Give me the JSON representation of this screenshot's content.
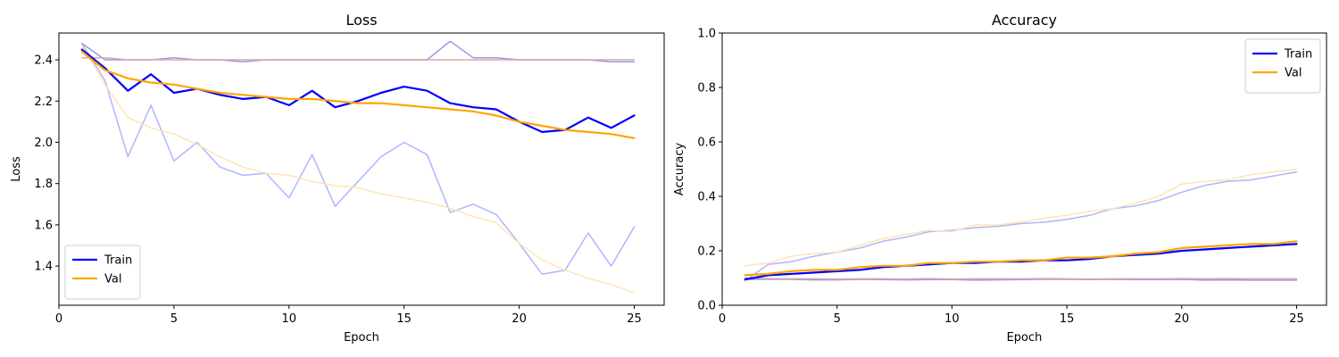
{
  "colors": {
    "train": "#0000ff",
    "val": "#ffa500",
    "train_faint": "#b3b3ff",
    "val_faint": "#ffe4b3",
    "train_mid": "#9898e8",
    "val_mid": "#d8a8a8"
  },
  "chart_data": [
    {
      "type": "line",
      "title": "Loss",
      "xlabel": "Epoch",
      "ylabel": "Loss",
      "xlim": [
        0,
        26.3
      ],
      "ylim": [
        1.21,
        2.53
      ],
      "xticks": [
        0,
        5,
        10,
        15,
        20,
        25
      ],
      "yticks": [
        1.4,
        1.6,
        1.8,
        2.0,
        2.2,
        2.4
      ],
      "ytick_decimals": 1,
      "legend": "lower-left",
      "grid": false,
      "x": [
        1,
        2,
        3,
        4,
        5,
        6,
        7,
        8,
        9,
        10,
        11,
        12,
        13,
        14,
        15,
        16,
        17,
        18,
        19,
        20,
        21,
        22,
        23,
        24,
        25
      ],
      "series": [
        {
          "name": "Train",
          "role": "train",
          "legend": true,
          "values": [
            2.45,
            2.36,
            2.25,
            2.33,
            2.24,
            2.26,
            2.23,
            2.21,
            2.22,
            2.18,
            2.25,
            2.17,
            2.2,
            2.24,
            2.27,
            2.25,
            2.19,
            2.17,
            2.16,
            2.1,
            2.05,
            2.06,
            2.12,
            2.07,
            2.13
          ]
        },
        {
          "name": "Val",
          "role": "val",
          "legend": true,
          "values": [
            2.44,
            2.35,
            2.31,
            2.29,
            2.28,
            2.26,
            2.24,
            2.23,
            2.22,
            2.21,
            2.21,
            2.2,
            2.19,
            2.19,
            2.18,
            2.17,
            2.16,
            2.15,
            2.13,
            2.1,
            2.08,
            2.06,
            2.05,
            2.04,
            2.02
          ]
        },
        {
          "role": "train_faint",
          "values": [
            2.48,
            2.3,
            1.93,
            2.18,
            1.91,
            2.0,
            1.88,
            1.84,
            1.85,
            1.73,
            1.94,
            1.69,
            1.81,
            1.93,
            2.0,
            1.94,
            1.66,
            1.7,
            1.65,
            1.51,
            1.36,
            1.38,
            1.56,
            1.4,
            1.59
          ]
        },
        {
          "role": "val_faint",
          "values": [
            2.47,
            2.28,
            2.12,
            2.07,
            2.04,
            1.99,
            1.93,
            1.88,
            1.85,
            1.84,
            1.81,
            1.79,
            1.78,
            1.75,
            1.73,
            1.71,
            1.68,
            1.64,
            1.61,
            1.51,
            1.43,
            1.38,
            1.34,
            1.31,
            1.27
          ]
        },
        {
          "role": "train_mid",
          "values": [
            2.48,
            2.4,
            2.4,
            2.4,
            2.41,
            2.4,
            2.4,
            2.39,
            2.4,
            2.4,
            2.4,
            2.4,
            2.4,
            2.4,
            2.4,
            2.4,
            2.49,
            2.41,
            2.41,
            2.4,
            2.4,
            2.4,
            2.4,
            2.39,
            2.39
          ]
        },
        {
          "role": "val_mid",
          "values": [
            2.41,
            2.41,
            2.4,
            2.4,
            2.4,
            2.4,
            2.4,
            2.4,
            2.4,
            2.4,
            2.4,
            2.4,
            2.4,
            2.4,
            2.4,
            2.4,
            2.4,
            2.4,
            2.4,
            2.4,
            2.4,
            2.4,
            2.4,
            2.4,
            2.4
          ]
        }
      ]
    },
    {
      "type": "line",
      "title": "Accuracy",
      "xlabel": "Epoch",
      "ylabel": "Accuracy",
      "xlim": [
        0,
        26.3
      ],
      "ylim": [
        0,
        1.0
      ],
      "xticks": [
        0,
        5,
        10,
        15,
        20,
        25
      ],
      "yticks": [
        0.0,
        0.2,
        0.4,
        0.6,
        0.8,
        1.0
      ],
      "ytick_decimals": 1,
      "legend": "top-right",
      "grid": false,
      "x": [
        1,
        2,
        3,
        4,
        5,
        6,
        7,
        8,
        9,
        10,
        11,
        12,
        13,
        14,
        15,
        16,
        17,
        18,
        19,
        20,
        21,
        22,
        23,
        24,
        25
      ],
      "series": [
        {
          "name": "Train",
          "role": "train",
          "legend": true,
          "values": [
            0.095,
            0.11,
            0.115,
            0.12,
            0.125,
            0.13,
            0.14,
            0.145,
            0.15,
            0.155,
            0.155,
            0.16,
            0.16,
            0.165,
            0.165,
            0.17,
            0.18,
            0.185,
            0.19,
            0.2,
            0.205,
            0.21,
            0.215,
            0.22,
            0.225
          ]
        },
        {
          "name": "Val",
          "role": "val",
          "legend": true,
          "values": [
            0.11,
            0.115,
            0.125,
            0.13,
            0.13,
            0.14,
            0.145,
            0.145,
            0.155,
            0.155,
            0.16,
            0.16,
            0.165,
            0.165,
            0.175,
            0.175,
            0.18,
            0.19,
            0.195,
            0.21,
            0.215,
            0.22,
            0.225,
            0.225,
            0.235
          ]
        },
        {
          "role": "train_faint",
          "values": [
            0.09,
            0.15,
            0.16,
            0.18,
            0.195,
            0.21,
            0.235,
            0.25,
            0.27,
            0.275,
            0.285,
            0.29,
            0.3,
            0.305,
            0.315,
            0.33,
            0.355,
            0.365,
            0.385,
            0.415,
            0.44,
            0.455,
            0.46,
            0.475,
            0.49
          ]
        },
        {
          "role": "val_faint",
          "values": [
            0.145,
            0.155,
            0.18,
            0.19,
            0.195,
            0.22,
            0.245,
            0.26,
            0.275,
            0.27,
            0.295,
            0.295,
            0.305,
            0.32,
            0.33,
            0.345,
            0.355,
            0.375,
            0.4,
            0.445,
            0.455,
            0.46,
            0.48,
            0.49,
            0.5
          ]
        },
        {
          "role": "train_mid",
          "values": [
            0.095,
            0.095,
            0.095,
            0.093,
            0.093,
            0.095,
            0.094,
            0.093,
            0.094,
            0.094,
            0.092,
            0.093,
            0.094,
            0.095,
            0.095,
            0.094,
            0.095,
            0.094,
            0.094,
            0.095,
            0.092,
            0.093,
            0.092,
            0.092,
            0.092
          ]
        },
        {
          "role": "val_mid",
          "values": [
            0.1,
            0.098,
            0.097,
            0.097,
            0.096,
            0.097,
            0.097,
            0.096,
            0.098,
            0.096,
            0.097,
            0.097,
            0.097,
            0.098,
            0.097,
            0.096,
            0.097,
            0.097,
            0.097,
            0.098,
            0.097,
            0.098,
            0.097,
            0.097,
            0.097
          ]
        }
      ]
    }
  ]
}
